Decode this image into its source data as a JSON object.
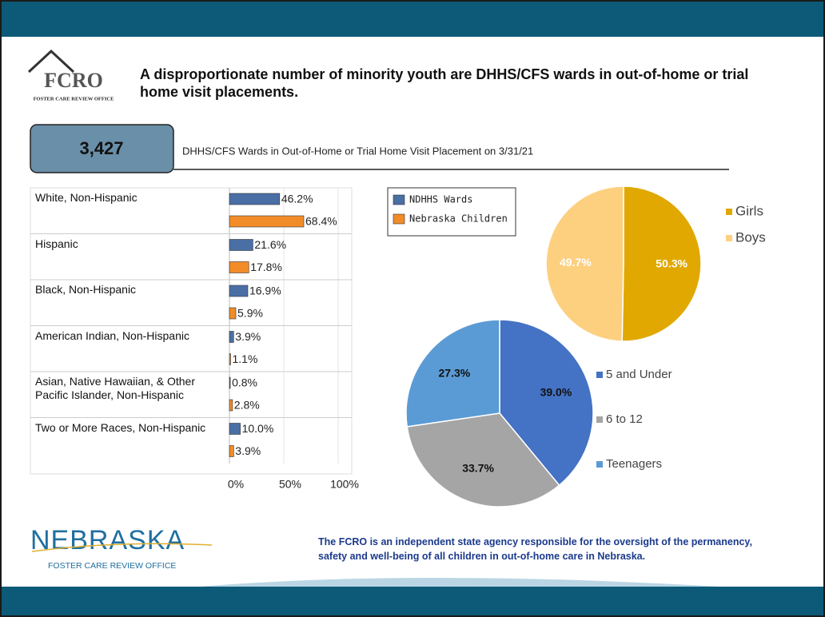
{
  "header": {
    "logo": "FCRO",
    "logo_sub": "FOSTER CARE REVIEW OFFICE",
    "title": "A disproportionate number of minority youth are DHHS/CFS wards in out-of-home or trial home visit placements."
  },
  "stat": {
    "value": "3,427",
    "label": "DHHS/CFS Wards in Out-of-Home or Trial Home Visit Placement on 3/31/21"
  },
  "chart_data": [
    {
      "type": "bar",
      "orientation": "horizontal",
      "categories": [
        "White, Non-Hispanic",
        "Hispanic",
        "Black, Non-Hispanic",
        "American Indian, Non-Hispanic",
        "Asian, Native Hawaiian, & Other Pacific Islander, Non-Hispanic",
        "Two or More Races, Non-Hispanic"
      ],
      "series": [
        {
          "name": "NDHHS Wards",
          "color": "#4a6fa5",
          "values": [
            46.2,
            21.6,
            16.9,
            3.9,
            0.8,
            10.0
          ],
          "value_labels": [
            "46.2%",
            "21.6%",
            "16.9%",
            "3.9%",
            "0.8%",
            "10.0%"
          ]
        },
        {
          "name": "Nebraska Children",
          "color": "#f28c28",
          "values": [
            68.4,
            17.8,
            5.9,
            1.1,
            2.8,
            3.9
          ],
          "value_labels": [
            "68.4%",
            "17.8%",
            "5.9%",
            "1.1%",
            "2.8%",
            "3.9%"
          ]
        }
      ],
      "xlim": [
        0,
        100
      ],
      "xticks": [
        {
          "value": 0,
          "label": "0%"
        },
        {
          "value": 50,
          "label": "50%"
        },
        {
          "value": 100,
          "label": "100%"
        }
      ],
      "grid": true
    },
    {
      "type": "pie",
      "categories": [
        "Girls",
        "Boys"
      ],
      "values": [
        50.3,
        49.7
      ],
      "value_labels": [
        "50.3%",
        "49.7%"
      ],
      "colors": [
        "#e0a800",
        "#fdd080"
      ]
    },
    {
      "type": "pie",
      "categories": [
        "5 and Under",
        "6 to 12",
        "Teenagers"
      ],
      "values": [
        39.0,
        33.7,
        27.3
      ],
      "value_labels": [
        "39.0%",
        "33.7%",
        "27.3%"
      ],
      "colors": [
        "#4472c4",
        "#a5a5a5",
        "#5b9bd5"
      ]
    }
  ],
  "footer": {
    "brand": "NEBRASKA",
    "brand_sub": "FOSTER CARE REVIEW OFFICE",
    "note": "The FCRO is an independent state agency responsible for the oversight of the permanency, safety and well-being of all children in out-of-home care in Nebraska."
  }
}
